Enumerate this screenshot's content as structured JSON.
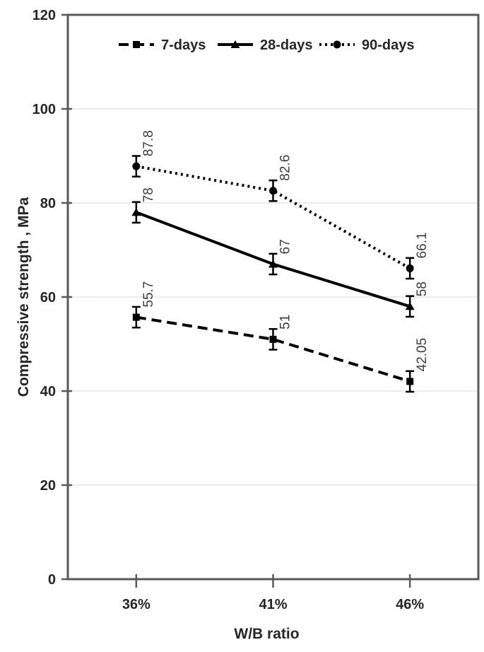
{
  "chart_data": {
    "type": "line",
    "title": "",
    "xlabel": "W/B ratio",
    "ylabel": "Compressive strength , MPa",
    "categories": [
      "36%",
      "41%",
      "46%"
    ],
    "ylim": [
      0,
      120
    ],
    "yticks": [
      0,
      20,
      40,
      60,
      80,
      100,
      120
    ],
    "grid": true,
    "legend_position": "top-center-inside",
    "error_bar_mpa": 2.2,
    "series": [
      {
        "name": "7-days",
        "line_style": "dashed",
        "marker": "square",
        "values": [
          55.7,
          51,
          42.05
        ],
        "labels": [
          "55.7",
          "51",
          "42.05"
        ]
      },
      {
        "name": "28-days",
        "line_style": "solid",
        "marker": "triangle",
        "values": [
          78,
          67,
          58
        ],
        "labels": [
          "78",
          "67",
          "58"
        ]
      },
      {
        "name": "90-days",
        "line_style": "dotted",
        "marker": "circle",
        "values": [
          87.8,
          82.6,
          66.1
        ],
        "labels": [
          "87.8",
          "82.6",
          "66.1"
        ]
      }
    ],
    "colors": {
      "series_line": "#000000",
      "marker_fill": "#000000",
      "error_bar": "#000000",
      "gridline": "#e1e6eb",
      "axis_border": "#595959",
      "tick_text": "#262626",
      "data_label_text": "#3d3d3d"
    }
  }
}
